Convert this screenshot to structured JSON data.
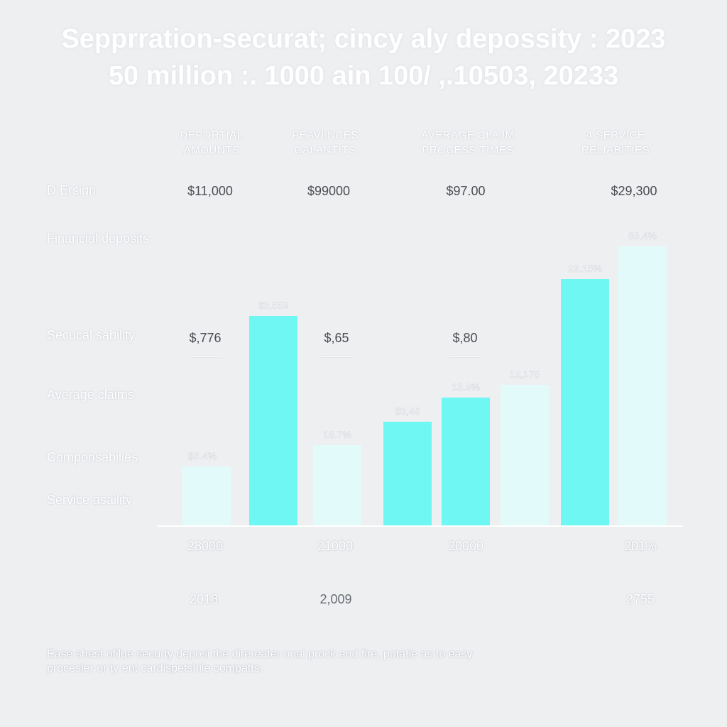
{
  "title": {
    "line1": "Sepprration-securat; cincy aly depossity : 2023",
    "line2": "50 million :. 1000 ain 100/ ,.10503, 20233"
  },
  "column_headers": [
    {
      "line1": "DEPORTIAL",
      "line2": "AMOUNTS"
    },
    {
      "line1": "PEAVLNCES",
      "line2": "CALANTITS"
    },
    {
      "line1": "AVERAGE CLAJM",
      "line2": "PROCESS TIMES"
    },
    {
      "line1": "4 SERVICE",
      "line2": "RELIABITIES"
    }
  ],
  "row_labels": [
    "D Ersign",
    "Financial deposits",
    "Secucal sability",
    "Average claims",
    "Componsabilies",
    "Service asaility"
  ],
  "top_values": [
    "$11,000",
    "$99000",
    "$97.00",
    "$29,300"
  ],
  "mid_values": [
    "$,776",
    "$,65",
    "$,80"
  ],
  "x_values": [
    "28000",
    "21000",
    "20000",
    "201%"
  ],
  "year_values": [
    "2018",
    "2,009",
    "2755"
  ],
  "footer": {
    "line1": "Ease shest ofilue securty deposi the direreater onal prock and fire, potatie as to easy",
    "line2": "procesier or ty ent cardispetshile compatts."
  },
  "colors": {
    "background": "#eeeff1",
    "bar_cyan": "#6ff7f4",
    "bar_pale": "#e2fbfa",
    "axis": "#ffffff"
  },
  "chart_data": {
    "type": "bar",
    "bars": [
      {
        "label": "$3.4%",
        "value": 84,
        "color": "pale"
      },
      {
        "label": "$3,559",
        "value": 296,
        "color": "cyan"
      },
      {
        "label": "18.7%",
        "value": 114,
        "color": "pale"
      },
      {
        "label": "$3,45",
        "value": 147,
        "color": "cyan"
      },
      {
        "label": "13.9%",
        "value": 181,
        "color": "cyan"
      },
      {
        "label": "12,175",
        "value": 199,
        "color": "pale"
      },
      {
        "label": "22.15%",
        "value": 348,
        "color": "cyan"
      },
      {
        "label": "83.4%",
        "value": 394,
        "color": "pale"
      }
    ],
    "ylim": [
      0,
      400
    ],
    "grid": false
  }
}
